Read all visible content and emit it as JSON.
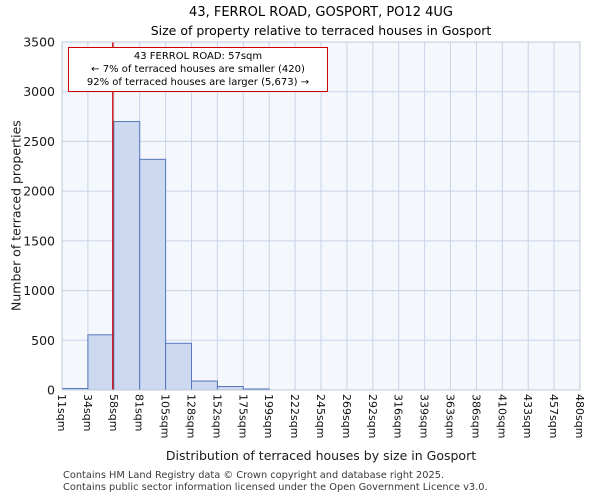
{
  "title": "43, FERROL ROAD, GOSPORT, PO12 4UG",
  "subtitle": "Size of property relative to terraced houses in Gosport",
  "annotation": {
    "line1": "43 FERROL ROAD: 57sqm",
    "line2": "← 7% of terraced houses are smaller (420)",
    "line3": "92% of terraced houses are larger (5,673) →"
  },
  "footer": {
    "line1": "Contains HM Land Registry data © Crown copyright and database right 2025.",
    "line2": "Contains public sector information licensed under the Open Government Licence v3.0."
  },
  "chart_data": {
    "type": "bar",
    "title": "43, FERROL ROAD, GOSPORT, PO12 4UG — Size of property relative to terraced houses in Gosport",
    "xlabel": "Distribution of terraced houses by size in Gosport",
    "ylabel": "Number of terraced properties",
    "ylim": [
      0,
      3500
    ],
    "ytick_step": 500,
    "x_ticks_sqm": [
      11,
      34,
      58,
      81,
      105,
      128,
      152,
      175,
      199,
      222,
      245,
      269,
      292,
      316,
      339,
      363,
      386,
      410,
      433,
      457,
      480
    ],
    "tick_labels": [
      "11sqm",
      "34sqm",
      "58sqm",
      "81sqm",
      "105sqm",
      "128sqm",
      "152sqm",
      "175sqm",
      "199sqm",
      "222sqm",
      "245sqm",
      "269sqm",
      "292sqm",
      "316sqm",
      "339sqm",
      "363sqm",
      "386sqm",
      "410sqm",
      "433sqm",
      "457sqm",
      "480sqm"
    ],
    "values": [
      15,
      555,
      2700,
      2320,
      470,
      90,
      35,
      10,
      0,
      0,
      0,
      0,
      0,
      0,
      0,
      0,
      0,
      0,
      0,
      0
    ],
    "marker": {
      "label": "57sqm",
      "value_sqm": 57,
      "color": "#cc0000"
    },
    "smaller_pct": 7,
    "smaller_count": 420,
    "larger_pct": 92,
    "larger_count": "5,673",
    "grid": true,
    "colors": {
      "bar_fill": "#ccd9f0",
      "bar_stroke": "#5577bb",
      "grid": "#c9d4e8",
      "plot_bg": "#f4f7fc",
      "frame": "#c0c8d8",
      "marker": "#cc0000"
    }
  }
}
